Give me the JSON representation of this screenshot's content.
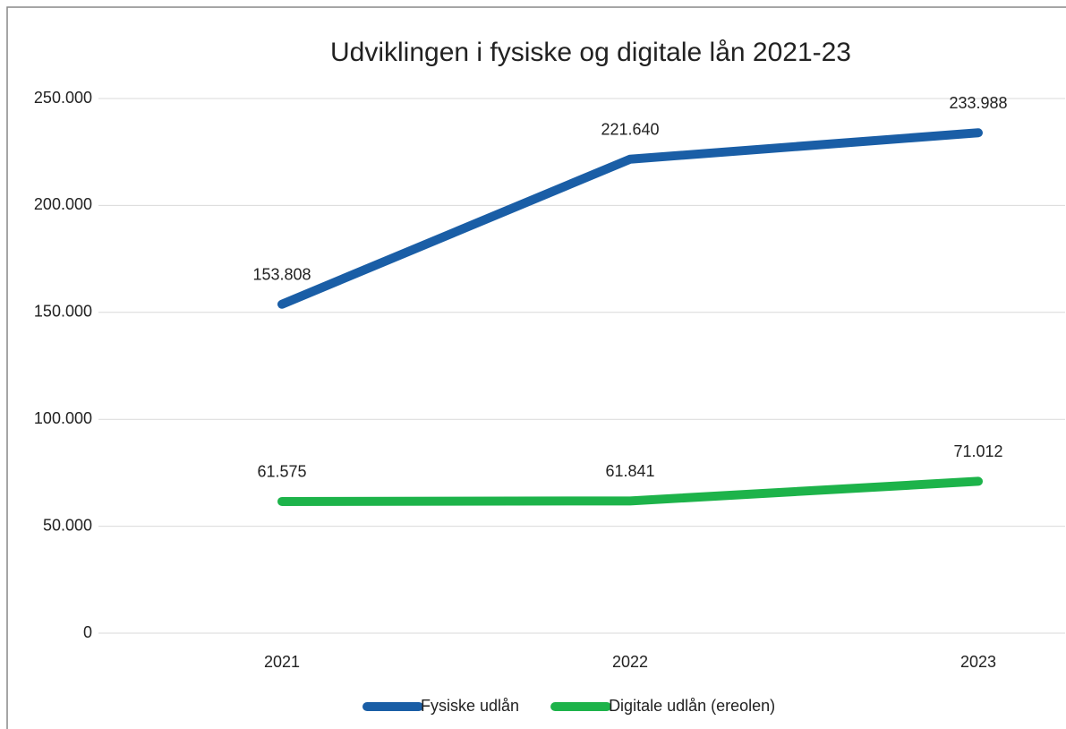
{
  "chart_data": {
    "type": "line",
    "title": "Udviklingen i fysiske og digitale lån 2021-23",
    "categories": [
      "2021",
      "2022",
      "2023"
    ],
    "series": [
      {
        "name": "Fysiske udlån",
        "color": "#1a5ea6",
        "values": [
          153808,
          221640,
          233988
        ],
        "value_labels": [
          "153.808",
          "221.640",
          "233.988"
        ]
      },
      {
        "name": "Digitale udlån (ereolen)",
        "color": "#1db34a",
        "values": [
          61575,
          61841,
          71012
        ],
        "value_labels": [
          "61.575",
          "61.841",
          "71.012"
        ]
      }
    ],
    "ylim": [
      0,
      250000
    ],
    "yticks": [
      0,
      {
        "value": 50000,
        "label": "50.000"
      },
      {
        "value": 100000,
        "label": "100.000"
      },
      {
        "value": 150000,
        "label": "150.000"
      },
      {
        "value": 200000,
        "label": "200.000"
      },
      {
        "value": 250000,
        "label": "250.000"
      }
    ],
    "grid": true,
    "legend": "bottom"
  }
}
